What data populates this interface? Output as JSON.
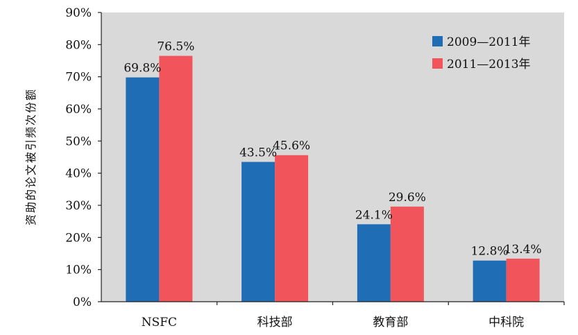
{
  "chart_data": {
    "type": "bar",
    "title": "",
    "xlabel": "",
    "ylabel": "资助的论文被引频次份额",
    "categories": [
      "NSFC",
      "科技部",
      "教育部",
      "中科院"
    ],
    "series": [
      {
        "name": "2009—2011年",
        "values": [
          69.8,
          43.5,
          24.1,
          12.8
        ],
        "labels": [
          "69.8%",
          "43.5%",
          "24.1%",
          "12.8%"
        ],
        "color": "#1f6db5"
      },
      {
        "name": "2011—2013年",
        "values": [
          76.5,
          45.6,
          29.6,
          13.4
        ],
        "labels": [
          "76.5%",
          "45.6%",
          "29.6%",
          "13.4%"
        ],
        "color": "#f2545b"
      }
    ],
    "ylim": [
      0,
      90
    ],
    "yticks": [
      0,
      10,
      20,
      30,
      40,
      50,
      60,
      70,
      80,
      90
    ],
    "ytick_labels": [
      "0%",
      "10%",
      "20%",
      "30%",
      "40%",
      "50%",
      "60%",
      "70%",
      "80%",
      "90%"
    ],
    "grid": false,
    "legend_position": "top-right"
  }
}
